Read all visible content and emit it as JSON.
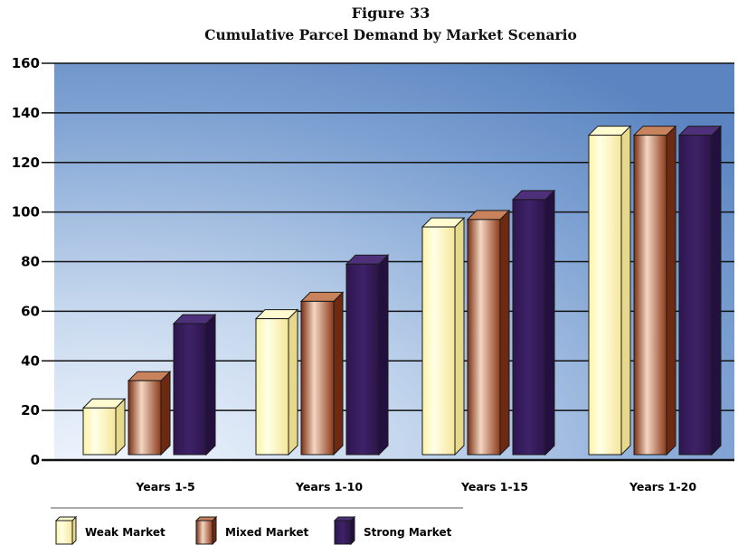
{
  "chart_data": {
    "type": "bar",
    "title": "Figure 33",
    "subtitle": "Cumulative Parcel Demand by Market Scenario",
    "categories": [
      "Years 1-5",
      "Years 1-10",
      "Years 1-15",
      "Years 1-20"
    ],
    "series": [
      {
        "name": "Weak Market",
        "values": [
          21,
          57,
          94,
          131
        ]
      },
      {
        "name": "Mixed Market",
        "values": [
          32,
          64,
          97,
          131
        ]
      },
      {
        "name": "Strong Market",
        "values": [
          55,
          79,
          105,
          131
        ]
      }
    ],
    "ylim": [
      0,
      160
    ],
    "yticks": [
      "0",
      "20",
      "40",
      "60",
      "80",
      "100",
      "120",
      "140",
      "160"
    ],
    "grid": true,
    "legend_position": "bottom-left",
    "colors": {
      "weak": "#FFF4B0",
      "mixed": "#9C4E2C",
      "strong": "#3B1F63",
      "background_top": "#5B88C4",
      "background_light": "#F4F8FF"
    }
  }
}
